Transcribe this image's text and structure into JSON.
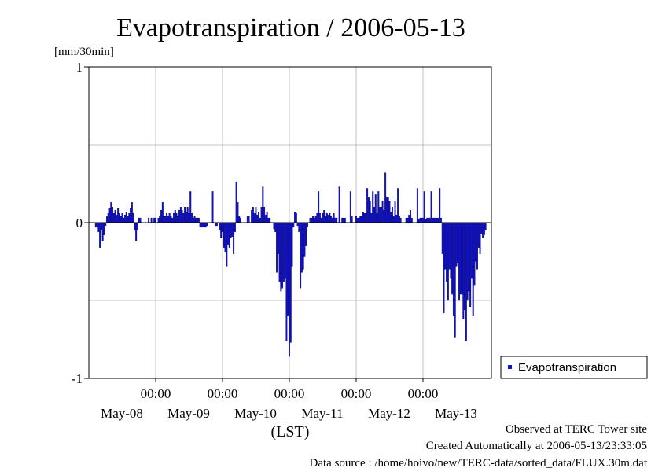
{
  "chart_data": {
    "type": "bar",
    "title": "Evapotranspiration / 2006-05-13",
    "ylabel": "[mm/30min]",
    "xlabel": "(LST)",
    "ylim": [
      -1,
      1
    ],
    "y_ticks": [
      "1",
      "0",
      "-1"
    ],
    "x_time_ticks": [
      "00:00",
      "00:00",
      "00:00",
      "00:00",
      "00:00"
    ],
    "x_date_ticks": [
      "May-08",
      "May-09",
      "May-10",
      "May-11",
      "May-12",
      "May-13"
    ],
    "grid": true,
    "legend_position": "right",
    "series": [
      {
        "name": "Evapotranspiration",
        "color": "#1010d0",
        "x_start": "2006-05-07 12:00",
        "interval": "30min",
        "values": [
          -0.03,
          -0.03,
          -0.06,
          -0.16,
          -0.05,
          -0.12,
          -0.08,
          -0.02,
          0.04,
          0.06,
          0.09,
          0.13,
          0.1,
          0.06,
          0.08,
          0.05,
          0.09,
          0.06,
          0.04,
          0.06,
          0.03,
          0.05,
          0.07,
          0.04,
          0.06,
          0.09,
          0.13,
          0.06,
          -0.05,
          -0.12,
          -0.05,
          0.03,
          0.03,
          0,
          0,
          0,
          0,
          0,
          0.03,
          0,
          0.03,
          0,
          0.03,
          0.03,
          0,
          0.03,
          0.04,
          0.08,
          0.13,
          0.04,
          0.04,
          0.06,
          0.04,
          0.06,
          0.04,
          0.03,
          0.06,
          0.08,
          0.06,
          0.04,
          0.08,
          0.1,
          0.08,
          0.06,
          0.1,
          0.07,
          0.1,
          0.06,
          0.2,
          0.06,
          0.03,
          0.04,
          0.03,
          0.03,
          0.03,
          -0.03,
          -0.03,
          -0.03,
          -0.03,
          -0.03,
          -0.02,
          0,
          0,
          0,
          0.2,
          0,
          -0.02,
          -0.02,
          0,
          -0.05,
          -0.1,
          -0.06,
          -0.16,
          -0.19,
          -0.28,
          -0.14,
          -0.16,
          -0.1,
          -0.09,
          -0.2,
          -0.06,
          0.26,
          0.13,
          0.04,
          0.03,
          0,
          0,
          0,
          0,
          0.04,
          0.04,
          0,
          0.08,
          0.1,
          0.06,
          0.1,
          0.05,
          0.07,
          0.03,
          0.1,
          0.23,
          0.1,
          0.05,
          0.07,
          0.03,
          0.03,
          0,
          0,
          -0.04,
          -0.06,
          -0.32,
          -0.2,
          -0.38,
          -0.44,
          -0.42,
          -0.38,
          -0.36,
          -0.76,
          -0.6,
          -0.86,
          -0.77,
          -0.28,
          -0.03,
          0.07,
          0.06,
          -0.02,
          -0.06,
          -0.42,
          -0.32,
          -0.3,
          -0.22,
          -0.15,
          -0.03,
          0,
          0.03,
          0.03,
          0.04,
          0.03,
          0.04,
          0.06,
          0.2,
          0.06,
          0.03,
          0.06,
          0.08,
          0.04,
          0.06,
          0.05,
          0.06,
          0.04,
          0.03,
          0.06,
          0.03,
          0.03,
          0,
          0.23,
          0,
          0.03,
          0.03,
          0.03,
          0,
          0,
          0,
          0.2,
          0.04,
          0,
          0,
          0.04,
          0.03,
          0.03,
          0.04,
          0.04,
          0.07,
          0.06,
          0.06,
          0.22,
          0.16,
          0.14,
          0.06,
          0.2,
          0.1,
          0.18,
          0.06,
          0.2,
          0.1,
          0.1,
          0.14,
          0.08,
          0.32,
          0.16,
          0.16,
          0.14,
          0.07,
          0.1,
          0.04,
          0.14,
          0.05,
          0.22,
          0.04,
          0.03,
          0,
          0,
          0,
          0.03,
          0.03,
          0.05,
          0.08,
          0.03,
          0,
          0,
          0,
          0.22,
          0.02,
          0.03,
          0.03,
          0.03,
          0.2,
          0.02,
          0.03,
          0.03,
          0.03,
          0.2,
          0.03,
          0.03,
          0.03,
          0.03,
          0.03,
          0.22,
          0.03,
          -0.2,
          -0.58,
          -0.3,
          -0.38,
          -0.5,
          -0.3,
          -0.36,
          -0.46,
          -0.6,
          -0.74,
          -0.28,
          -0.26,
          -0.5,
          -0.46,
          -0.46,
          -0.62,
          -0.56,
          -0.76,
          -0.5,
          -0.44,
          -0.54,
          -0.36,
          -0.6,
          -0.4,
          -0.25,
          -0.3,
          -0.16,
          -0.2,
          -0.07,
          -0.1,
          -0.08,
          -0.05
        ]
      }
    ]
  },
  "footer": {
    "line1": "Observed at TERC Tower site",
    "line2": "Created Automatically at 2006-05-13/23:33:05",
    "line3": "Data source : /home/hoivo/new/TERC-data/sorted_data/FLUX.30m.dat"
  }
}
